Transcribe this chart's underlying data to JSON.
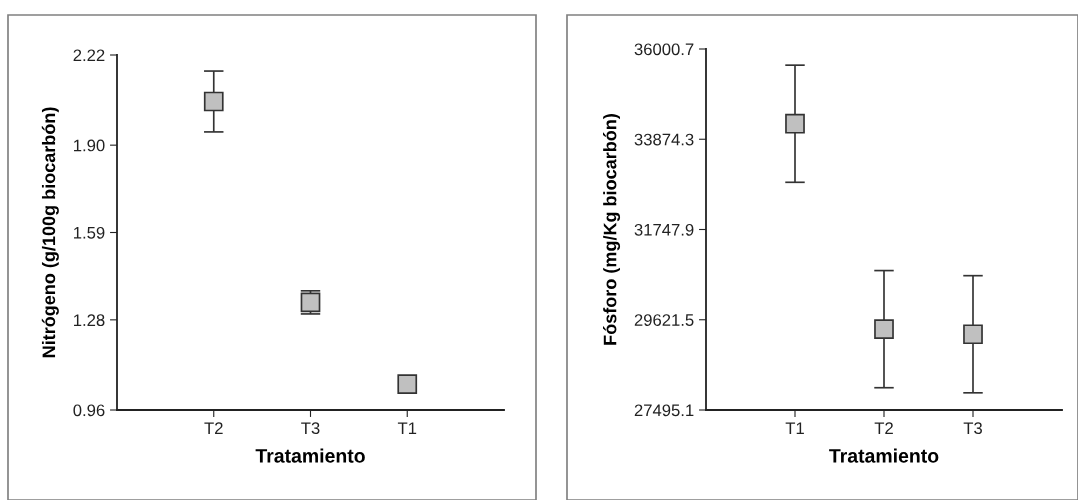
{
  "chart_data": [
    {
      "type": "scatter",
      "xlabel": "Tratamiento",
      "ylabel": "Nitrógeno (g/100g biocarbón)",
      "categories": [
        "T2",
        "T3",
        "T1"
      ],
      "series": [
        {
          "color": "#c0c0c0",
          "values": [
            2.055,
            1.342,
            1.052
          ],
          "errors": [
            0.108,
            0.041,
            null
          ]
        }
      ],
      "ylim": [
        0.96,
        2.22
      ],
      "yticks": [
        0.96,
        1.28,
        {
          "value": 1.59,
          "label": "1.59"
        },
        {
          "value": 1.9,
          "label": "1.90"
        },
        2.22
      ],
      "marker": "square",
      "grid": false
    },
    {
      "type": "scatter",
      "xlabel": "Tratamiento",
      "ylabel": "Fósforo (mg/Kg biocarbón)",
      "categories": [
        "T1",
        "T2",
        "T3"
      ],
      "series": [
        {
          "color": "#c0c0c0",
          "values": [
            34240,
            29400,
            29280
          ],
          "errors": [
            1380,
            1380,
            1380
          ]
        }
      ],
      "ylim": [
        27495.1,
        36000.7
      ],
      "yticks": [
        27495.1,
        29621.5,
        31747.9,
        33874.3,
        36000.7
      ],
      "marker": "square",
      "grid": false
    }
  ]
}
